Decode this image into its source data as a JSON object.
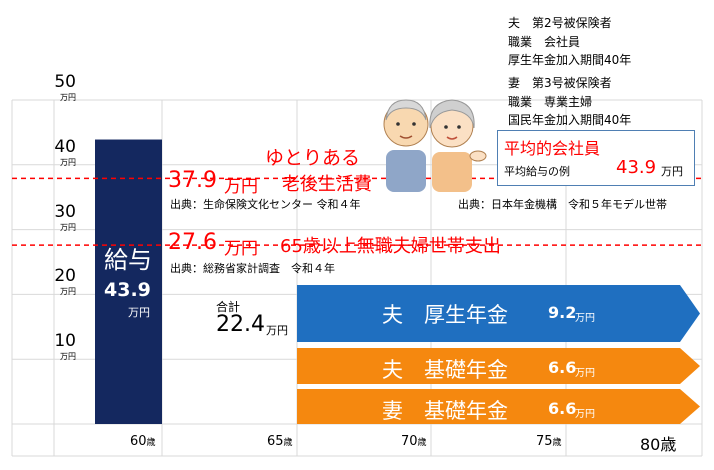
{
  "chart_data": {
    "type": "bar",
    "y_ticks": [
      {
        "value": 50,
        "label": "50",
        "unit": "万円"
      },
      {
        "value": 40,
        "label": "40",
        "unit": "万円"
      },
      {
        "value": 30,
        "label": "30",
        "unit": "万円"
      },
      {
        "value": 20,
        "label": "20",
        "unit": "万円"
      },
      {
        "value": 10,
        "label": "10",
        "unit": "万円"
      }
    ],
    "ylim": [
      0,
      50
    ],
    "x_ticks": [
      {
        "value": 60,
        "label": "60",
        "unit": "歳"
      },
      {
        "value": 65,
        "label": "65",
        "unit": "歳"
      },
      {
        "value": 70,
        "label": "70",
        "unit": "歳"
      },
      {
        "value": 75,
        "label": "75",
        "unit": "歳"
      },
      {
        "value": 80,
        "label": "80歳",
        "unit": ""
      }
    ],
    "salary_bar": {
      "label": "給与",
      "value": 43.9,
      "value_label": "43.9",
      "unit": "万円",
      "color": "#14285f"
    },
    "reference_lines": [
      {
        "value": 37.9,
        "value_label": "37.9",
        "unit": "万円",
        "label": "ゆとりある",
        "label2": "老後生活費",
        "source": "出典：生命保険文化センター 令和４年",
        "color": "#ff0000"
      },
      {
        "value": 27.6,
        "value_label": "27.6",
        "unit": "万円",
        "label": "65歳以上無職夫婦世帯支出",
        "source": "出典：総務省家計調査　令和４年",
        "color": "#ff0000"
      }
    ],
    "source_right": "出典：日本年金機構　令和５年モデル世帯",
    "pension_total": {
      "label": "合計",
      "value": 22.4,
      "value_label": "22.4",
      "unit": "万円"
    },
    "pension_segments": [
      {
        "label": "夫　厚生年金",
        "value": 9.2,
        "value_label": "9.2",
        "unit": "万円",
        "color": "#1f6fc0"
      },
      {
        "label": "夫　基礎年金",
        "value": 6.6,
        "value_label": "6.6",
        "unit": "万円",
        "color": "#f5880f"
      },
      {
        "label": "妻　基礎年金",
        "value": 6.6,
        "value_label": "6.6",
        "unit": "万円",
        "color": "#f5880f"
      }
    ],
    "grid": true
  },
  "household": {
    "husband_line1": "夫　第2号被保険者",
    "husband_line2": "職業　会社員",
    "husband_line3": "厚生年金加入期間40年",
    "wife_line1": "妻　第3号被保険者",
    "wife_line2": "職業　専業主婦",
    "wife_line3": "国民年金加入期間40年"
  },
  "info_box": {
    "title": "平均的会社員",
    "caption": "平均給与の例",
    "value_label": "43.9",
    "unit": "万円"
  },
  "colors": {
    "accent_red": "#ff0000",
    "navy": "#14285f",
    "blue": "#1f6fc0",
    "orange": "#f5880f",
    "grid": "#d9d9d9"
  }
}
